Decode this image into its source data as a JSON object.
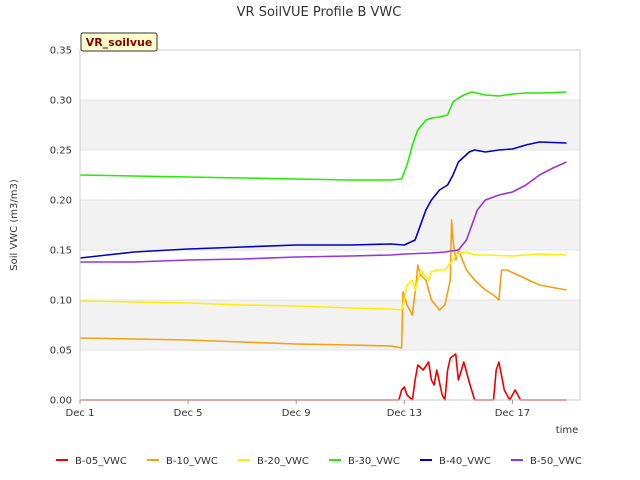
{
  "chart_data": {
    "type": "line",
    "title": "VR SoilVUE Profile B VWC",
    "xlabel": "time",
    "ylabel": "Soil VWC (m3/m3)",
    "badge": "VR_soilvue",
    "ylim": [
      0,
      0.35
    ],
    "xlim": [
      1,
      19.5
    ],
    "yticks": [
      0.0,
      0.05,
      0.1,
      0.15,
      0.2,
      0.25,
      0.3,
      0.35
    ],
    "ytick_labels": [
      "0.00",
      "0.05",
      "0.10",
      "0.15",
      "0.20",
      "0.25",
      "0.30",
      "0.35"
    ],
    "xticks": [
      1,
      5,
      9,
      13,
      17
    ],
    "xtick_labels": [
      "Dec 1",
      "Dec 5",
      "Dec 9",
      "Dec 13",
      "Dec 17"
    ],
    "legend_position": "bottom",
    "x_unit": "day of December",
    "series": [
      {
        "name": "B-05_VWC",
        "color": "#ee0000",
        "x": [
          1.0,
          12.8,
          12.9,
          13.0,
          13.1,
          13.3,
          13.4,
          13.5,
          13.7,
          13.9,
          14.0,
          14.1,
          14.2,
          14.4,
          14.5,
          14.6,
          14.7,
          14.9,
          15.0,
          15.2,
          15.4,
          15.6,
          16.3,
          16.4,
          16.5,
          16.7,
          16.9,
          17.1,
          17.3,
          19.0
        ],
        "values": [
          0.0,
          0.0,
          0.01,
          0.013,
          0.005,
          0.0,
          0.02,
          0.035,
          0.03,
          0.038,
          0.02,
          0.015,
          0.03,
          0.005,
          0.0,
          0.03,
          0.042,
          0.046,
          0.02,
          0.038,
          0.018,
          0.0,
          0.0,
          0.03,
          0.038,
          0.01,
          0.0,
          0.01,
          0.0,
          0.0
        ]
      },
      {
        "name": "B-10_VWC",
        "color": "#f5a010",
        "x": [
          1.0,
          3.0,
          5.0,
          7.0,
          9.0,
          11.0,
          12.5,
          12.9,
          12.95,
          13.1,
          13.2,
          13.3,
          13.45,
          13.5,
          13.6,
          13.8,
          14.0,
          14.3,
          14.5,
          14.7,
          14.75,
          14.8,
          14.9,
          15.0,
          15.3,
          15.6,
          16.0,
          16.3,
          16.5,
          16.6,
          16.8,
          17.2,
          17.6,
          18.0,
          19.0
        ],
        "values": [
          0.062,
          0.061,
          0.06,
          0.058,
          0.056,
          0.055,
          0.054,
          0.052,
          0.108,
          0.095,
          0.09,
          0.085,
          0.12,
          0.135,
          0.125,
          0.12,
          0.1,
          0.09,
          0.095,
          0.12,
          0.18,
          0.16,
          0.14,
          0.15,
          0.13,
          0.12,
          0.11,
          0.105,
          0.1,
          0.13,
          0.13,
          0.125,
          0.12,
          0.115,
          0.11
        ]
      },
      {
        "name": "B-20_VWC",
        "color": "#ffee00",
        "x": [
          1.0,
          3.0,
          5.0,
          7.0,
          9.0,
          11.0,
          12.5,
          12.9,
          13.0,
          13.1,
          13.3,
          13.4,
          13.6,
          13.9,
          14.0,
          14.2,
          14.5,
          14.8,
          15.0,
          15.3,
          15.6,
          16.0,
          17.0,
          18.0,
          19.0
        ],
        "values": [
          0.099,
          0.098,
          0.097,
          0.095,
          0.094,
          0.092,
          0.091,
          0.09,
          0.1,
          0.115,
          0.12,
          0.11,
          0.13,
          0.12,
          0.128,
          0.13,
          0.13,
          0.14,
          0.147,
          0.148,
          0.145,
          0.145,
          0.144,
          0.146,
          0.145
        ]
      },
      {
        "name": "B-30_VWC",
        "color": "#22ee00",
        "x": [
          1.0,
          3.0,
          5.0,
          7.0,
          9.0,
          11.0,
          12.5,
          12.9,
          13.1,
          13.3,
          13.5,
          13.8,
          14.0,
          14.3,
          14.6,
          14.8,
          15.0,
          15.2,
          15.5,
          16.0,
          16.5,
          17.0,
          17.5,
          18.0,
          19.0
        ],
        "values": [
          0.225,
          0.224,
          0.223,
          0.222,
          0.221,
          0.22,
          0.22,
          0.221,
          0.235,
          0.255,
          0.27,
          0.28,
          0.282,
          0.283,
          0.285,
          0.298,
          0.302,
          0.305,
          0.308,
          0.305,
          0.304,
          0.306,
          0.307,
          0.307,
          0.308
        ]
      },
      {
        "name": "B-40_VWC",
        "color": "#0000cc",
        "x": [
          1.0,
          2.0,
          3.0,
          5.0,
          7.0,
          9.0,
          11.0,
          12.5,
          13.0,
          13.4,
          13.6,
          13.8,
          14.0,
          14.3,
          14.6,
          14.8,
          15.0,
          15.2,
          15.4,
          15.6,
          15.8,
          16.0,
          16.5,
          17.0,
          17.5,
          18.0,
          19.0
        ],
        "values": [
          0.142,
          0.145,
          0.148,
          0.151,
          0.153,
          0.155,
          0.155,
          0.156,
          0.155,
          0.16,
          0.175,
          0.19,
          0.2,
          0.21,
          0.215,
          0.225,
          0.238,
          0.243,
          0.248,
          0.25,
          0.249,
          0.248,
          0.25,
          0.251,
          0.255,
          0.258,
          0.257
        ]
      },
      {
        "name": "B-50_VWC",
        "color": "#9933dd",
        "x": [
          1.0,
          3.0,
          5.0,
          7.0,
          9.0,
          11.0,
          12.5,
          13.0,
          14.0,
          14.5,
          15.0,
          15.3,
          15.5,
          15.7,
          16.0,
          16.5,
          17.0,
          17.5,
          18.0,
          18.5,
          19.0
        ],
        "values": [
          0.138,
          0.138,
          0.14,
          0.141,
          0.143,
          0.144,
          0.145,
          0.146,
          0.147,
          0.148,
          0.15,
          0.16,
          0.175,
          0.19,
          0.2,
          0.205,
          0.208,
          0.215,
          0.225,
          0.232,
          0.238
        ]
      }
    ]
  }
}
